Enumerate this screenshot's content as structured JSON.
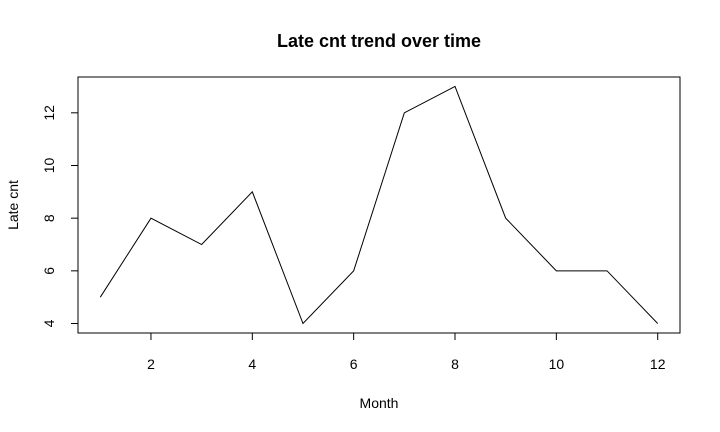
{
  "chart_data": {
    "type": "line",
    "title": "Late cnt trend over time",
    "xlabel": "Month",
    "ylabel": "Late cnt",
    "x": [
      1,
      2,
      3,
      4,
      5,
      6,
      7,
      8,
      9,
      10,
      11,
      12
    ],
    "series": [
      {
        "values": [
          5,
          8,
          7,
          9,
          4,
          6,
          12,
          13,
          8,
          6,
          6,
          4
        ],
        "color": "#000000"
      }
    ],
    "xlim": [
      0.56,
      12.44
    ],
    "ylim": [
      3.64,
      13.36
    ],
    "xticks": [
      2,
      4,
      6,
      8,
      10,
      12
    ],
    "yticks": [
      4,
      6,
      8,
      10,
      12
    ],
    "grid": false,
    "legend": "none"
  }
}
